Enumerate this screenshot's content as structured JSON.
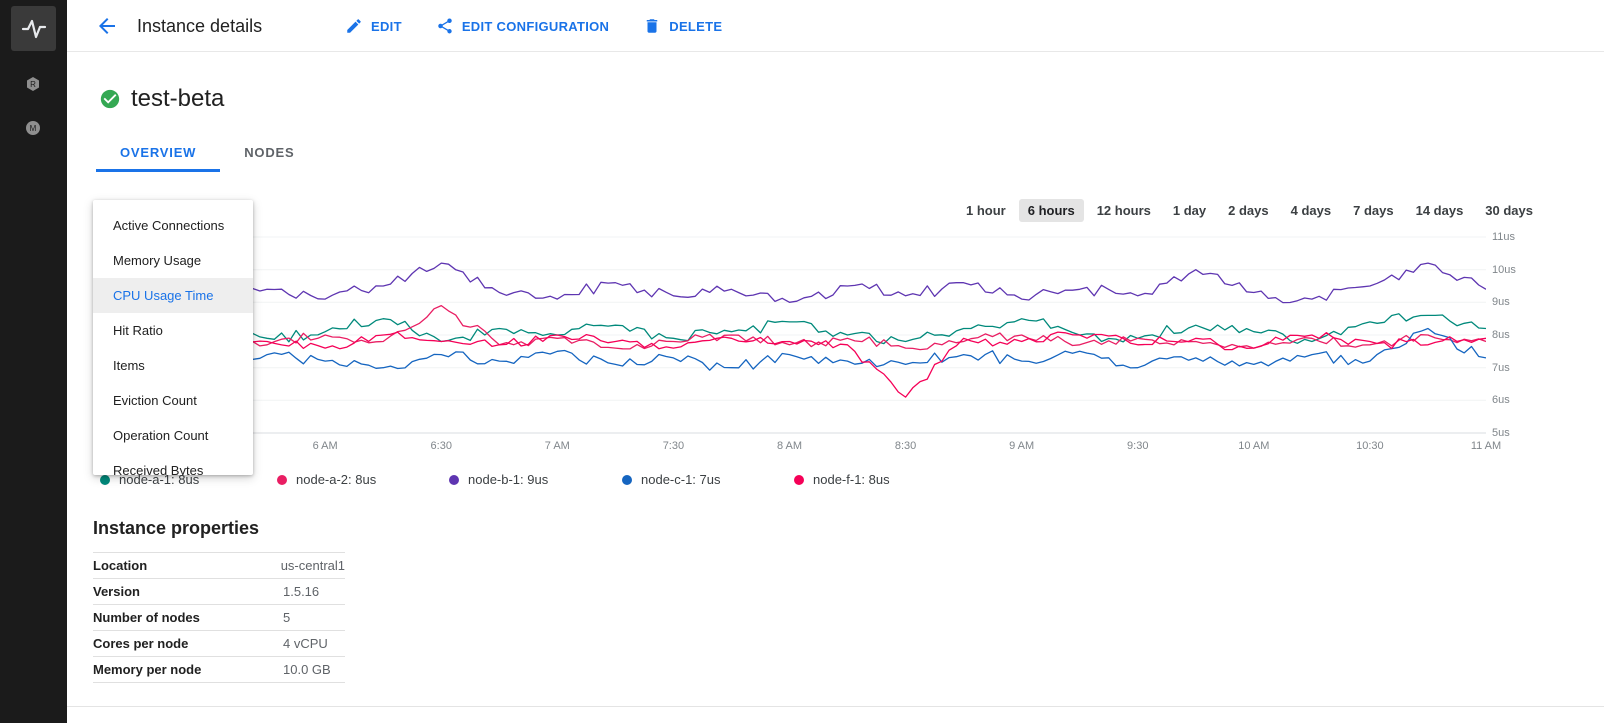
{
  "accent_color": "#1a73e8",
  "header": {
    "back_icon": "arrow-back-icon",
    "title": "Instance details",
    "actions": [
      {
        "label": "EDIT",
        "icon": "pencil-icon"
      },
      {
        "label": "EDIT CONFIGURATION",
        "icon": "share-icon"
      },
      {
        "label": "DELETE",
        "icon": "trash-icon"
      }
    ]
  },
  "instance": {
    "status_icon": "check-circle-icon",
    "status_color": "#34a853",
    "name": "test-beta"
  },
  "tabs": [
    {
      "label": "OVERVIEW",
      "active": true
    },
    {
      "label": "NODES",
      "active": false
    }
  ],
  "metric_dropdown": {
    "items": [
      "Active Connections",
      "Memory Usage",
      "CPU Usage Time",
      "Hit Ratio",
      "Items",
      "Eviction Count",
      "Operation Count",
      "Received Bytes"
    ],
    "selected": "CPU Usage Time"
  },
  "time_range": {
    "options": [
      "1 hour",
      "6 hours",
      "12 hours",
      "1 day",
      "2 days",
      "4 days",
      "7 days",
      "14 days",
      "30 days"
    ],
    "selected": "6 hours"
  },
  "chart_data": {
    "type": "line",
    "metric": "CPU Usage Time",
    "unit": "us",
    "x_domain_hours": [
      5.0,
      11.0
    ],
    "y_domain": [
      5,
      11
    ],
    "anchor_interval_hours": 0.25,
    "y_ticks": [
      {
        "v": 11,
        "label": "11us"
      },
      {
        "v": 10,
        "label": "10us"
      },
      {
        "v": 9,
        "label": "9us"
      },
      {
        "v": 8,
        "label": "8us"
      },
      {
        "v": 7,
        "label": "7us"
      },
      {
        "v": 6,
        "label": "6us"
      },
      {
        "v": 5,
        "label": "5us"
      }
    ],
    "x_ticks": [
      {
        "t": 6,
        "label": "6 AM"
      },
      {
        "t": 6.5,
        "label": "6:30"
      },
      {
        "t": 7,
        "label": "7 AM"
      },
      {
        "t": 7.5,
        "label": "7:30"
      },
      {
        "t": 8,
        "label": "8 AM"
      },
      {
        "t": 8.5,
        "label": "8:30"
      },
      {
        "t": 9,
        "label": "9 AM"
      },
      {
        "t": 9.5,
        "label": "9:30"
      },
      {
        "t": 10,
        "label": "10 AM"
      },
      {
        "t": 10.5,
        "label": "10:30"
      },
      {
        "t": 11,
        "label": "11 AM"
      }
    ],
    "series": [
      {
        "name": "node-a-1",
        "legend": "node-a-1: 8us",
        "color": "#00897b",
        "jitter": 0.2,
        "values": [
          8.2,
          8.0,
          8.4,
          7.9,
          8.1,
          8.5,
          7.8,
          8.2,
          8.0,
          8.3,
          7.9,
          8.1,
          8.4,
          8.0,
          7.8,
          8.2,
          8.5,
          8.0,
          7.9,
          8.3,
          8.1,
          7.8,
          8.4,
          8.6,
          8.2
        ]
      },
      {
        "name": "node-a-2",
        "legend": "node-a-2: 8us",
        "color": "#e91e63",
        "jitter": 0.18,
        "values": [
          7.8,
          7.6,
          7.9,
          7.7,
          8.0,
          7.8,
          8.9,
          7.7,
          7.9,
          7.6,
          7.8,
          8.0,
          7.7,
          7.9,
          7.6,
          7.8,
          8.0,
          7.7,
          7.9,
          7.8,
          7.6,
          7.9,
          7.7,
          8.0,
          7.8
        ]
      },
      {
        "name": "node-b-1",
        "legend": "node-b-1: 9us",
        "color": "#5e35b1",
        "jitter": 0.22,
        "values": [
          9.3,
          9.6,
          9.2,
          9.4,
          9.1,
          9.5,
          10.2,
          9.3,
          9.1,
          9.6,
          9.2,
          9.4,
          9.0,
          9.5,
          9.2,
          9.6,
          9.1,
          9.4,
          9.2,
          10.0,
          9.3,
          9.1,
          9.5,
          10.2,
          9.4
        ]
      },
      {
        "name": "node-c-1",
        "legend": "node-c-1: 7us",
        "color": "#1565c0",
        "jitter": 0.22,
        "values": [
          7.3,
          7.5,
          7.1,
          7.4,
          7.2,
          7.0,
          7.4,
          7.2,
          7.5,
          7.1,
          7.3,
          7.0,
          7.4,
          7.2,
          7.1,
          7.4,
          7.2,
          7.5,
          7.0,
          7.3,
          7.1,
          7.4,
          7.2,
          8.2,
          7.3
        ]
      },
      {
        "name": "node-f-1",
        "legend": "node-f-1: 8us",
        "color": "#f50057",
        "jitter": 0.2,
        "values": [
          7.9,
          7.7,
          8.0,
          7.8,
          7.6,
          8.0,
          7.8,
          7.7,
          8.0,
          7.8,
          7.6,
          7.9,
          7.8,
          7.7,
          6.1,
          7.9,
          7.8,
          8.0,
          7.7,
          7.9,
          7.6,
          8.0,
          7.8,
          7.7,
          7.9
        ]
      }
    ]
  },
  "properties": {
    "title": "Instance properties",
    "rows": [
      {
        "label": "Location",
        "value": "us-central1"
      },
      {
        "label": "Version",
        "value": "1.5.16"
      },
      {
        "label": "Number of nodes",
        "value": "5"
      },
      {
        "label": "Cores per node",
        "value": "4 vCPU"
      },
      {
        "label": "Memory per node",
        "value": "10.0 GB"
      }
    ]
  }
}
